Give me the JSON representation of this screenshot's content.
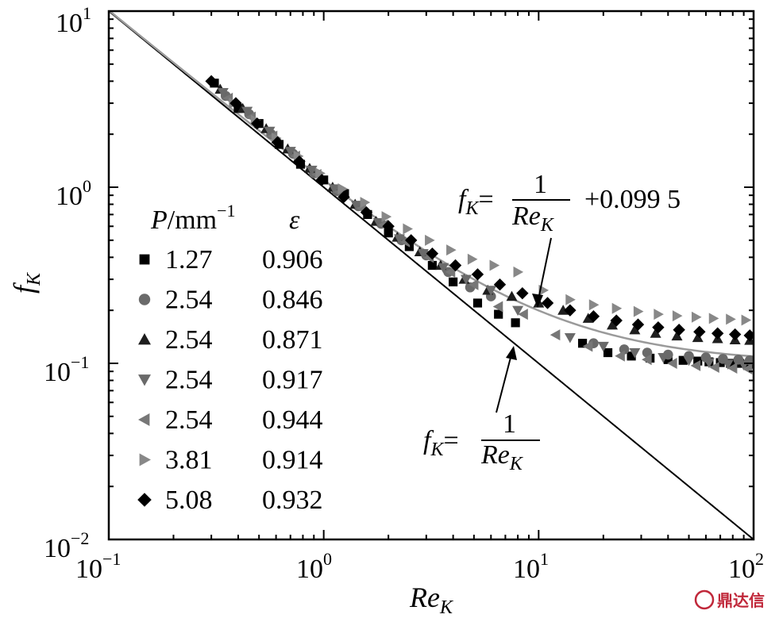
{
  "chart_data": {
    "type": "scatter",
    "xscale": "log",
    "yscale": "log",
    "xlim": [
      0.1,
      100
    ],
    "ylim": [
      0.01,
      10
    ],
    "xlabel_main": "Re",
    "xlabel_sub": "K",
    "ylabel_main": "f",
    "ylabel_sub": "K",
    "xticks": [
      {
        "value": 0.1,
        "base": "10",
        "exp": "−1"
      },
      {
        "value": 1,
        "base": "10",
        "exp": "0"
      },
      {
        "value": 10,
        "base": "10",
        "exp": "1"
      },
      {
        "value": 100,
        "base": "10",
        "exp": "2"
      }
    ],
    "yticks": [
      {
        "value": 0.01,
        "base": "10",
        "exp": "−2"
      },
      {
        "value": 0.1,
        "base": "10",
        "exp": "−1"
      },
      {
        "value": 1,
        "base": "10",
        "exp": "0"
      },
      {
        "value": 10,
        "base": "10",
        "exp": "1"
      }
    ],
    "legend": {
      "header_p": "P",
      "header_unit": "/mm",
      "header_exp": "−1",
      "header_eps": "ε",
      "placement": "left"
    },
    "series": [
      {
        "p": "1.27",
        "eps": "0.906",
        "marker": "square",
        "color": "#000000",
        "points": [
          [
            0.31,
            3.9
          ],
          [
            0.4,
            2.8
          ],
          [
            0.5,
            2.3
          ],
          [
            0.62,
            1.75
          ],
          [
            0.78,
            1.35
          ],
          [
            1.0,
            1.1
          ],
          [
            1.25,
            0.92
          ],
          [
            1.6,
            0.7
          ],
          [
            2.0,
            0.55
          ],
          [
            2.5,
            0.46
          ],
          [
            3.2,
            0.36
          ],
          [
            4.0,
            0.29
          ],
          [
            5.2,
            0.22
          ],
          [
            6.5,
            0.19
          ],
          [
            7.8,
            0.17
          ],
          [
            16,
            0.13
          ],
          [
            21,
            0.115
          ],
          [
            27,
            0.11
          ],
          [
            33,
            0.107
          ],
          [
            40,
            0.105
          ],
          [
            47,
            0.104
          ],
          [
            55,
            0.103
          ],
          [
            62,
            0.102
          ],
          [
            70,
            0.101
          ],
          [
            78,
            0.1
          ],
          [
            86,
            0.1
          ],
          [
            95,
            0.099
          ]
        ]
      },
      {
        "p": "2.54",
        "eps": "0.846",
        "marker": "circle",
        "color": "#6a6a6a",
        "points": [
          [
            0.35,
            3.3
          ],
          [
            0.45,
            2.6
          ],
          [
            0.57,
            2.0
          ],
          [
            0.72,
            1.55
          ],
          [
            0.9,
            1.2
          ],
          [
            1.15,
            0.95
          ],
          [
            1.45,
            0.78
          ],
          [
            1.85,
            0.62
          ],
          [
            2.3,
            0.5
          ],
          [
            3.0,
            0.41
          ],
          [
            3.8,
            0.33
          ],
          [
            4.8,
            0.27
          ],
          [
            6.0,
            0.24
          ],
          [
            18,
            0.13
          ],
          [
            25,
            0.12
          ],
          [
            32,
            0.115
          ],
          [
            40,
            0.112
          ],
          [
            50,
            0.11
          ],
          [
            60,
            0.108
          ],
          [
            72,
            0.106
          ],
          [
            85,
            0.105
          ],
          [
            96,
            0.104
          ]
        ]
      },
      {
        "p": "2.54",
        "eps": "0.871",
        "marker": "triangle-up",
        "color": "#1e1e1e",
        "points": [
          [
            0.33,
            3.6
          ],
          [
            0.42,
            2.8
          ],
          [
            0.54,
            2.15
          ],
          [
            0.68,
            1.65
          ],
          [
            0.86,
            1.28
          ],
          [
            1.1,
            1.0
          ],
          [
            1.4,
            0.8
          ],
          [
            1.75,
            0.64
          ],
          [
            2.2,
            0.52
          ],
          [
            2.8,
            0.43
          ],
          [
            3.5,
            0.36
          ],
          [
            4.5,
            0.3
          ],
          [
            5.8,
            0.26
          ],
          [
            7.5,
            0.24
          ],
          [
            10,
            0.22
          ],
          [
            13,
            0.2
          ],
          [
            17,
            0.18
          ],
          [
            22,
            0.165
          ],
          [
            28,
            0.155
          ],
          [
            35,
            0.148
          ],
          [
            44,
            0.143
          ],
          [
            55,
            0.14
          ],
          [
            68,
            0.138
          ],
          [
            82,
            0.136
          ],
          [
            96,
            0.135
          ]
        ]
      },
      {
        "p": "2.54",
        "eps": "0.917",
        "marker": "triangle-down",
        "color": "#6a6a6a",
        "points": [
          [
            0.34,
            3.45
          ],
          [
            0.44,
            2.7
          ],
          [
            0.56,
            2.08
          ],
          [
            0.7,
            1.6
          ],
          [
            0.88,
            1.25
          ],
          [
            1.12,
            0.98
          ],
          [
            1.42,
            0.79
          ],
          [
            1.8,
            0.63
          ],
          [
            2.25,
            0.51
          ],
          [
            2.9,
            0.42
          ],
          [
            3.6,
            0.35
          ],
          [
            4.6,
            0.3
          ],
          [
            6.0,
            0.26
          ],
          [
            8,
            0.2
          ],
          [
            14,
            0.14
          ],
          [
            20,
            0.125
          ],
          [
            28,
            0.115
          ],
          [
            38,
            0.108
          ],
          [
            50,
            0.104
          ],
          [
            62,
            0.101
          ],
          [
            76,
            0.099
          ],
          [
            90,
            0.098
          ]
        ]
      },
      {
        "p": "2.54",
        "eps": "0.944",
        "marker": "triangle-left",
        "color": "#777777",
        "points": [
          [
            0.36,
            3.2
          ],
          [
            0.46,
            2.5
          ],
          [
            0.58,
            1.95
          ],
          [
            0.74,
            1.5
          ],
          [
            0.93,
            1.18
          ],
          [
            1.18,
            0.94
          ],
          [
            1.5,
            0.76
          ],
          [
            1.9,
            0.61
          ],
          [
            2.4,
            0.49
          ],
          [
            3.1,
            0.4
          ],
          [
            3.9,
            0.33
          ],
          [
            5.0,
            0.28
          ],
          [
            6.5,
            0.21
          ],
          [
            8.5,
            0.19
          ],
          [
            12,
            0.145
          ],
          [
            17,
            0.125
          ],
          [
            24,
            0.11
          ],
          [
            32,
            0.105
          ],
          [
            42,
            0.1
          ],
          [
            54,
            0.097
          ],
          [
            66,
            0.095
          ],
          [
            80,
            0.094
          ],
          [
            94,
            0.093
          ]
        ]
      },
      {
        "p": "3.81",
        "eps": "0.914",
        "marker": "triangle-right",
        "color": "#888888",
        "points": [
          [
            0.38,
            3.0
          ],
          [
            0.48,
            2.4
          ],
          [
            0.6,
            1.9
          ],
          [
            0.76,
            1.5
          ],
          [
            0.96,
            1.2
          ],
          [
            1.22,
            0.98
          ],
          [
            1.55,
            0.82
          ],
          [
            1.95,
            0.68
          ],
          [
            2.45,
            0.58
          ],
          [
            3.1,
            0.5
          ],
          [
            3.9,
            0.44
          ],
          [
            4.9,
            0.39
          ],
          [
            6.2,
            0.36
          ],
          [
            8,
            0.33
          ],
          [
            10.5,
            0.26
          ],
          [
            14,
            0.23
          ],
          [
            18,
            0.215
          ],
          [
            23,
            0.205
          ],
          [
            29,
            0.197
          ],
          [
            36,
            0.19
          ],
          [
            44,
            0.186
          ],
          [
            54,
            0.183
          ],
          [
            65,
            0.18
          ],
          [
            78,
            0.178
          ],
          [
            92,
            0.176
          ]
        ]
      },
      {
        "p": "5.08",
        "eps": "0.932",
        "marker": "diamond",
        "color": "#000000",
        "points": [
          [
            0.3,
            4.0
          ],
          [
            0.39,
            3.0
          ],
          [
            0.49,
            2.3
          ],
          [
            0.61,
            1.8
          ],
          [
            0.77,
            1.4
          ],
          [
            0.98,
            1.1
          ],
          [
            1.24,
            0.88
          ],
          [
            1.58,
            0.72
          ],
          [
            2.0,
            0.6
          ],
          [
            2.55,
            0.5
          ],
          [
            3.2,
            0.42
          ],
          [
            4.1,
            0.36
          ],
          [
            5.2,
            0.32
          ],
          [
            6.6,
            0.28
          ],
          [
            8.4,
            0.25
          ],
          [
            11,
            0.22
          ],
          [
            14,
            0.2
          ],
          [
            18,
            0.185
          ],
          [
            23,
            0.175
          ],
          [
            29,
            0.166
          ],
          [
            36,
            0.16
          ],
          [
            45,
            0.155
          ],
          [
            56,
            0.151
          ],
          [
            68,
            0.148
          ],
          [
            82,
            0.146
          ],
          [
            96,
            0.144
          ]
        ]
      }
    ],
    "lines": [
      {
        "name": "black-reference",
        "formula": "1/Re",
        "offset": 0,
        "color": "#000000"
      },
      {
        "name": "gray-fit",
        "formula": "1/Re + 0.0995",
        "offset": 0.0995,
        "color": "#9a9a9a"
      }
    ],
    "annotations": {
      "fit": {
        "lhs": "f",
        "lhs_sub": "K",
        "eq": "=",
        "num": "1",
        "den": "Re",
        "den_sub": "K",
        "tail": "+0.099 5"
      },
      "ref": {
        "lhs": "f",
        "lhs_sub": "K",
        "eq": "=",
        "num": "1",
        "den": "Re",
        "den_sub": "K"
      }
    }
  },
  "watermark": {
    "text": "鼎达信"
  }
}
